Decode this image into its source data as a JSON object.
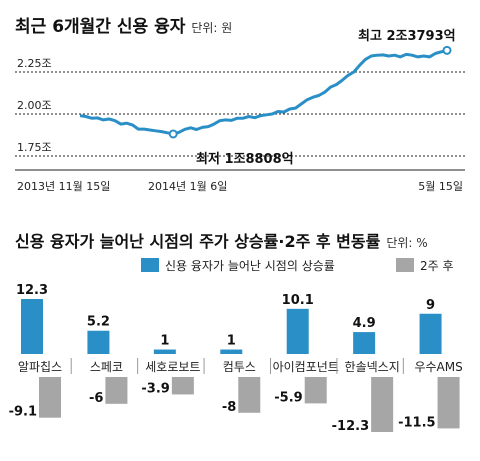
{
  "top_chart": {
    "title": "최근 6개월간 신용 융자",
    "unit": "단위: 원",
    "y_ticks": [
      "2.25조",
      "2.00조",
      "1.75조"
    ],
    "x_labels": [
      "2013년 11월 15일",
      "2014년 1월 6일",
      "5월 15일"
    ],
    "max_annotation": "최고 2조3793억",
    "min_annotation": "최저 1조8808억",
    "colors": {
      "line": "#2a8fc6",
      "grid": "#222222"
    }
  },
  "bottom_chart": {
    "title": "신용 융자가 늘어난 시점의 주가 상승률·2주 후 변동률",
    "unit": "단위: %",
    "legend": {
      "series1": "신용 융자가 늘어난 시점의 상승률",
      "series2": "2주 후"
    },
    "colors": {
      "series1": "#2a8fc6",
      "series2": "#a6a6a6"
    }
  },
  "chart_data": [
    {
      "type": "line",
      "title": "최근 6개월간 신용 융자",
      "unit": "단위: 원",
      "y_ticks": [
        2.25,
        2.0,
        1.75
      ],
      "ylim": [
        1.75,
        2.25
      ],
      "x_tick_labels": [
        "2013년 11월 15일",
        "2014년 1월 6일",
        "5월 15일"
      ],
      "max_label": "최고 2조3793억",
      "min_label": "최저 1조8808억",
      "values": [
        1.99,
        1.985,
        1.975,
        1.977,
        1.965,
        1.97,
        1.96,
        1.94,
        1.945,
        1.935,
        1.91,
        1.91,
        1.905,
        1.9,
        1.895,
        1.888,
        1.881,
        1.891,
        1.909,
        1.918,
        1.908,
        1.92,
        1.925,
        1.94,
        1.96,
        1.965,
        1.962,
        1.975,
        1.975,
        1.985,
        1.978,
        1.99,
        1.995,
        2.0,
        2.015,
        2.012,
        2.03,
        2.035,
        2.06,
        2.085,
        2.1,
        2.11,
        2.13,
        2.16,
        2.175,
        2.2,
        2.23,
        2.25,
        2.29,
        2.325,
        2.345,
        2.35,
        2.352,
        2.345,
        2.35,
        2.34,
        2.355,
        2.35,
        2.34,
        2.345,
        2.34,
        2.36,
        2.37,
        2.379
      ]
    },
    {
      "type": "bar",
      "title": "신용 융자가 늘어난 시점의 주가 상승률·2주 후 변동률",
      "unit": "단위: %",
      "categories": [
        "알파칩스",
        "스페코",
        "세호로보트",
        "컴투스",
        "아이컴포넌트",
        "한솔넥스지",
        "우수AMS"
      ],
      "series": [
        {
          "name": "신용 융자가 늘어난 시점의 상승률",
          "values": [
            12.3,
            5.2,
            1,
            1,
            10.1,
            4.9,
            9
          ],
          "labels": [
            "12.3",
            "5.2",
            "1",
            "1",
            "10.1",
            "4.9",
            "9"
          ]
        },
        {
          "name": "2주 후",
          "values": [
            -9.1,
            -6,
            -3.9,
            -8,
            -5.9,
            -12.3,
            -11.5
          ],
          "labels": [
            "-9.1",
            "-6",
            "-3.9",
            "-8",
            "-5.9",
            "-12.3",
            "-11.5"
          ]
        }
      ]
    }
  ]
}
